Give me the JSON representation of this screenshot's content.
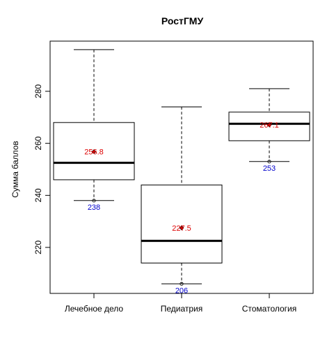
{
  "chart_data": {
    "type": "box",
    "title": "РостГМУ",
    "xlabel": "",
    "ylabel": "Сумма баллов",
    "ylim": [
      200,
      300
    ],
    "y_ticks": [
      220,
      240,
      260,
      280
    ],
    "grid": false,
    "legend": "none",
    "categories": [
      "Лечебное дело",
      "Педиатрия",
      "Стоматология"
    ],
    "boxes": [
      {
        "category": "Лечебное дело",
        "whisker_low": 238,
        "q1": 246,
        "median": 252.5,
        "q3": 268,
        "whisker_high": 296,
        "mean": 256.8,
        "mean_label": "256.8",
        "min_label": "238"
      },
      {
        "category": "Педиатрия",
        "whisker_low": 206,
        "q1": 214,
        "median": 222.5,
        "q3": 244,
        "whisker_high": 274,
        "mean": 227.5,
        "mean_label": "227.5",
        "min_label": "206"
      },
      {
        "category": "Стоматология",
        "whisker_low": 253,
        "q1": 261,
        "median": 267.5,
        "q3": 272,
        "whisker_high": 281,
        "mean": 267.1,
        "mean_label": "267.1",
        "min_label": "253"
      }
    ],
    "colors": {
      "box_stroke": "#000000",
      "median": "#000000",
      "mean_label": "#dd0000",
      "min_label": "#0000cc",
      "mean_marker": "#cc0000"
    }
  }
}
